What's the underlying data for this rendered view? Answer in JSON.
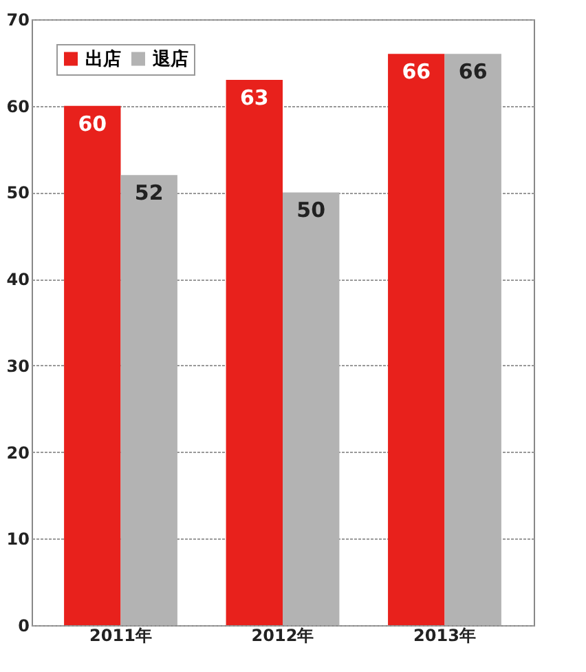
{
  "chart_data": {
    "type": "bar",
    "categories": [
      "2011年",
      "2012年",
      "2013年"
    ],
    "series": [
      {
        "name": "出店",
        "color": "#e8211c",
        "values": [
          60,
          63,
          66
        ]
      },
      {
        "name": "退店",
        "color": "#b3b3b3",
        "values": [
          52,
          50,
          66
        ]
      }
    ],
    "ylim": [
      0,
      70
    ],
    "yticks": [
      0,
      10,
      20,
      30,
      40,
      50,
      60,
      70
    ],
    "grid": "y",
    "legend": "top left",
    "data_labels": true
  }
}
